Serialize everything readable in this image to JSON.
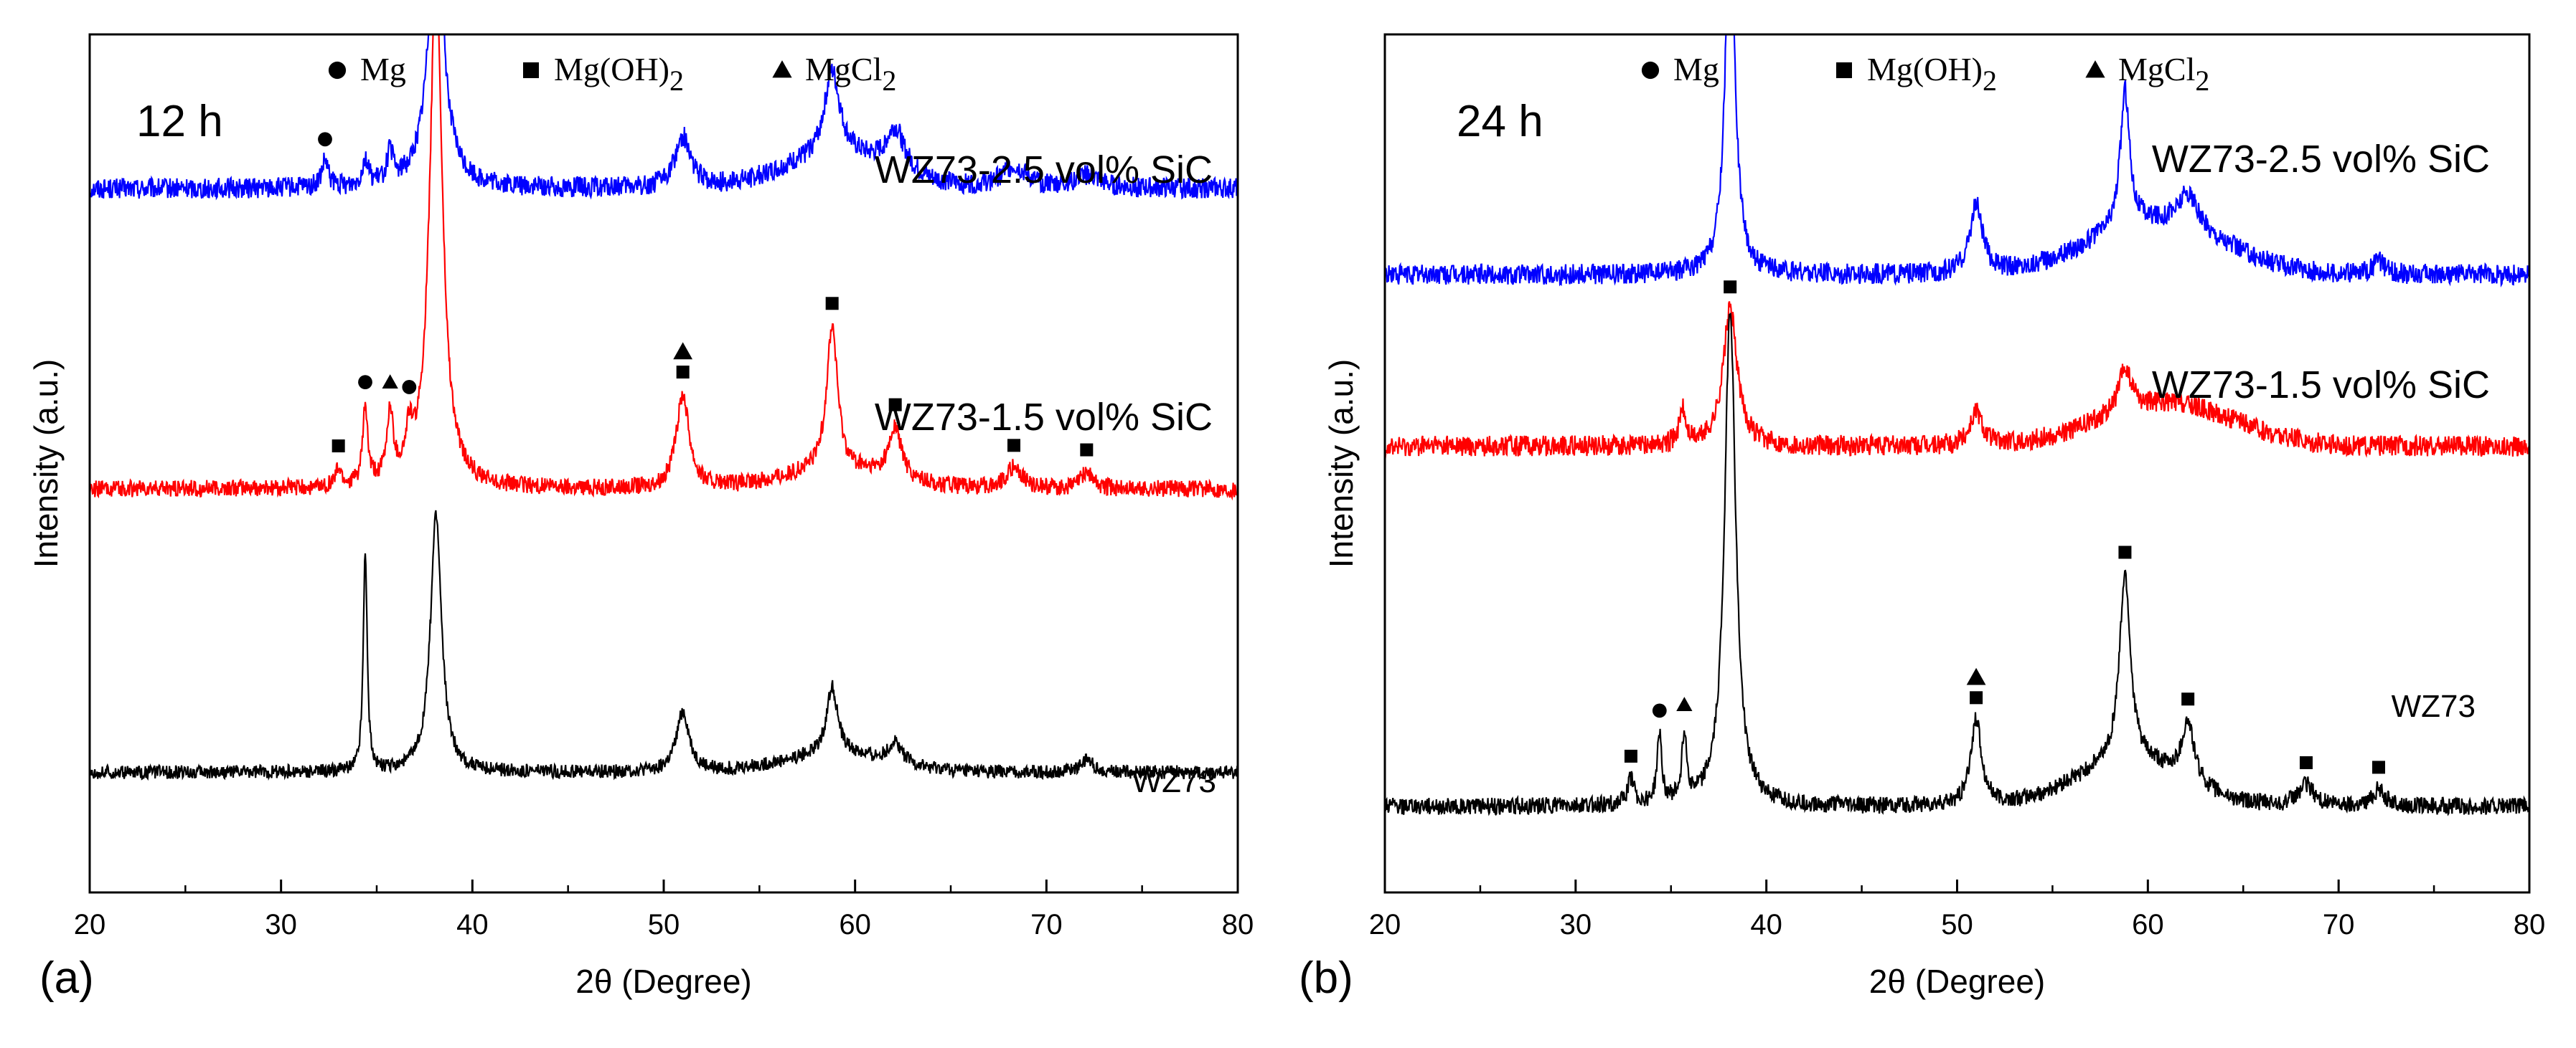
{
  "chart_data": [
    {
      "type": "line",
      "panel_label": "(a)",
      "time_label": "12 h",
      "xlabel": "2θ (Degree)",
      "ylabel": "Intensity (a.u.)",
      "xlim": [
        20,
        80
      ],
      "x_ticks": [
        20,
        30,
        40,
        50,
        60,
        70,
        80
      ],
      "grid": false,
      "legend": {
        "placement": "top",
        "entries": [
          {
            "marker": "circle",
            "label": "Mg"
          },
          {
            "marker": "square",
            "label": "Mg(OH)",
            "subscript": "2"
          },
          {
            "marker": "triangle",
            "label": "MgCl",
            "subscript": "2"
          }
        ]
      },
      "series": [
        {
          "name": "WZ73-2.5 vol% SiC",
          "color": "#0000ff",
          "baseline": 0.82,
          "slope": 0,
          "noise": 0.012,
          "peaks": [
            {
              "x": 32.3,
              "h": 0.03,
              "w": 0.2
            },
            {
              "x": 34.4,
              "h": 0.03,
              "w": 0.2
            },
            {
              "x": 35.7,
              "h": 0.035,
              "w": 0.2
            },
            {
              "x": 38.1,
              "h": 0.3,
              "w": 0.5
            },
            {
              "x": 51.0,
              "h": 0.06,
              "w": 0.5
            },
            {
              "x": 58.8,
              "h": 0.1,
              "w": 0.5
            },
            {
              "x": 62.1,
              "h": 0.05,
              "w": 0.6
            },
            {
              "x": 68.3,
              "h": 0.025,
              "w": 0.8
            },
            {
              "x": 72.1,
              "h": 0.015,
              "w": 0.8
            }
          ],
          "humps": [
            {
              "x": 59,
              "h": 0.035,
              "w": 4
            }
          ],
          "markers": [
            {
              "x": 32.3,
              "shape": "circle"
            }
          ]
        },
        {
          "name": "WZ73-1.5 vol% SiC",
          "color": "#ff0000",
          "baseline": 0.47,
          "slope": 0,
          "noise": 0.01,
          "peaks": [
            {
              "x": 33.0,
              "h": 0.02,
              "w": 0.2
            },
            {
              "x": 34.4,
              "h": 0.09,
              "w": 0.15
            },
            {
              "x": 35.7,
              "h": 0.08,
              "w": 0.2
            },
            {
              "x": 36.7,
              "h": 0.045,
              "w": 0.2
            },
            {
              "x": 38.1,
              "h": 0.6,
              "w": 0.4
            },
            {
              "x": 51.0,
              "h": 0.11,
              "w": 0.4
            },
            {
              "x": 58.8,
              "h": 0.17,
              "w": 0.35
            },
            {
              "x": 62.1,
              "h": 0.06,
              "w": 0.4
            },
            {
              "x": 68.3,
              "h": 0.025,
              "w": 0.5
            },
            {
              "x": 72.1,
              "h": 0.02,
              "w": 0.4
            }
          ],
          "humps": [
            {
              "x": 59,
              "h": 0.02,
              "w": 4
            }
          ],
          "markers": [
            {
              "x": 33.0,
              "shape": "square"
            },
            {
              "x": 34.4,
              "shape": "circle"
            },
            {
              "x": 35.7,
              "shape": "triangle"
            },
            {
              "x": 36.7,
              "shape": "circle"
            },
            {
              "x": 38.1,
              "shape": "square"
            },
            {
              "x": 51.0,
              "shape": "square+triangle"
            },
            {
              "x": 58.8,
              "shape": "square"
            },
            {
              "x": 62.1,
              "shape": "square"
            },
            {
              "x": 68.3,
              "shape": "square"
            },
            {
              "x": 72.1,
              "shape": "square"
            }
          ]
        },
        {
          "name": "WZ73",
          "color": "#000000",
          "baseline": 0.14,
          "slope": 0,
          "noise": 0.008,
          "peaks": [
            {
              "x": 34.4,
              "h": 0.26,
              "w": 0.12
            },
            {
              "x": 38.1,
              "h": 0.3,
              "w": 0.35
            },
            {
              "x": 51.0,
              "h": 0.07,
              "w": 0.4
            },
            {
              "x": 58.8,
              "h": 0.08,
              "w": 0.35
            },
            {
              "x": 62.1,
              "h": 0.025,
              "w": 0.4
            },
            {
              "x": 72.1,
              "h": 0.015,
              "w": 0.4
            }
          ],
          "humps": [
            {
              "x": 59,
              "h": 0.02,
              "w": 4
            }
          ],
          "markers": []
        }
      ]
    },
    {
      "type": "line",
      "panel_label": "(b)",
      "time_label": "24 h",
      "xlabel": "2θ (Degree)",
      "ylabel": "Intensity (a.u.)",
      "xlim": [
        20,
        80
      ],
      "x_ticks": [
        20,
        30,
        40,
        50,
        60,
        70,
        80
      ],
      "grid": false,
      "legend": {
        "placement": "top",
        "entries": [
          {
            "marker": "circle",
            "label": "Mg"
          },
          {
            "marker": "square",
            "label": "Mg(OH)",
            "subscript": "2"
          },
          {
            "marker": "triangle",
            "label": "MgCl",
            "subscript": "2"
          }
        ]
      },
      "series": [
        {
          "name": "WZ73-2.5 vol% SiC",
          "color": "#0000ff",
          "baseline": 0.72,
          "slope": 0,
          "noise": 0.012,
          "peaks": [
            {
              "x": 38.1,
              "h": 0.43,
              "w": 0.3
            },
            {
              "x": 51.0,
              "h": 0.08,
              "w": 0.4
            },
            {
              "x": 58.8,
              "h": 0.16,
              "w": 0.3
            },
            {
              "x": 62.1,
              "h": 0.04,
              "w": 0.6
            },
            {
              "x": 72.1,
              "h": 0.015,
              "w": 0.4
            }
          ],
          "humps": [
            {
              "x": 60.5,
              "h": 0.06,
              "w": 5
            }
          ],
          "markers": []
        },
        {
          "name": "WZ73-1.5 vol% SiC",
          "color": "#ff0000",
          "baseline": 0.52,
          "slope": 0,
          "noise": 0.012,
          "peaks": [
            {
              "x": 35.6,
              "h": 0.04,
              "w": 0.2
            },
            {
              "x": 38.1,
              "h": 0.16,
              "w": 0.45
            },
            {
              "x": 51.0,
              "h": 0.04,
              "w": 0.4
            },
            {
              "x": 58.8,
              "h": 0.05,
              "w": 0.4
            }
          ],
          "humps": [
            {
              "x": 61,
              "h": 0.05,
              "w": 5
            }
          ],
          "markers": []
        },
        {
          "name": "WZ73",
          "color": "#000000",
          "baseline": 0.1,
          "slope": 0,
          "noise": 0.01,
          "peaks": [
            {
              "x": 32.9,
              "h": 0.03,
              "w": 0.2
            },
            {
              "x": 34.4,
              "h": 0.08,
              "w": 0.15
            },
            {
              "x": 35.7,
              "h": 0.08,
              "w": 0.15
            },
            {
              "x": 38.1,
              "h": 0.58,
              "w": 0.35
            },
            {
              "x": 51.0,
              "h": 0.1,
              "w": 0.35
            },
            {
              "x": 58.8,
              "h": 0.22,
              "w": 0.35
            },
            {
              "x": 62.1,
              "h": 0.07,
              "w": 0.4
            },
            {
              "x": 68.3,
              "h": 0.025,
              "w": 0.5
            },
            {
              "x": 72.1,
              "h": 0.02,
              "w": 0.4
            }
          ],
          "humps": [
            {
              "x": 59,
              "h": 0.05,
              "w": 4
            }
          ],
          "markers": [
            {
              "x": 32.9,
              "shape": "square"
            },
            {
              "x": 34.4,
              "shape": "circle"
            },
            {
              "x": 35.7,
              "shape": "triangle"
            },
            {
              "x": 38.1,
              "shape": "square"
            },
            {
              "x": 51.0,
              "shape": "square+triangle"
            },
            {
              "x": 58.8,
              "shape": "square"
            },
            {
              "x": 62.1,
              "shape": "square"
            },
            {
              "x": 68.3,
              "shape": "square"
            },
            {
              "x": 72.1,
              "shape": "square"
            }
          ]
        }
      ]
    }
  ]
}
